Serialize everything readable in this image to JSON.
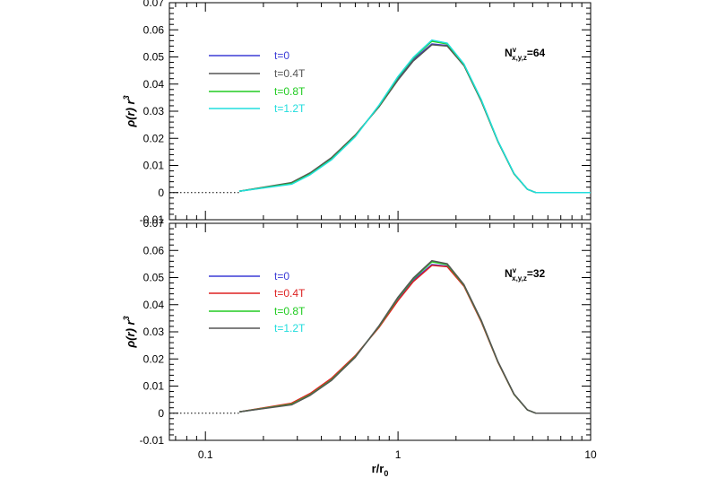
{
  "chart_data": [
    {
      "type": "line",
      "panel": "top",
      "annotation": {
        "base": "N",
        "sup": "v",
        "sub": "x,y,z",
        "value": "=64"
      },
      "ylabel": {
        "main": "ρ(r) r",
        "sup": "3"
      },
      "xscale": "log",
      "xlim": [
        0.065,
        10
      ],
      "ylim": [
        -0.01,
        0.07
      ],
      "yticks": [
        "-0.01",
        "0",
        "0.01",
        "0.02",
        "0.03",
        "0.04",
        "0.05",
        "0.06",
        "0.07"
      ],
      "zero_line": "dotted",
      "legend_position": "upper-left",
      "series": [
        {
          "name": "t=0",
          "color": "#3b3bd6",
          "x": [
            0.15,
            0.28,
            0.35,
            0.45,
            0.6,
            0.8,
            1.0,
            1.2,
            1.5,
            1.8,
            2.2,
            2.7,
            3.3,
            4.0,
            4.7,
            5.2,
            6.0,
            10.0
          ],
          "y": [
            0.0005,
            0.0035,
            0.007,
            0.0125,
            0.021,
            0.032,
            0.042,
            0.049,
            0.0548,
            0.0542,
            0.047,
            0.034,
            0.019,
            0.007,
            0.0012,
            0.0,
            0.0,
            0.0
          ]
        },
        {
          "name": "t=0.4T",
          "color": "#555555",
          "x": [
            0.15,
            0.28,
            0.35,
            0.45,
            0.6,
            0.8,
            1.0,
            1.2,
            1.5,
            1.8,
            2.2,
            2.7,
            3.3,
            4.0,
            4.7,
            5.2,
            6.0,
            10.0
          ],
          "y": [
            0.0005,
            0.0037,
            0.0073,
            0.0128,
            0.0212,
            0.0318,
            0.0415,
            0.0485,
            0.0545,
            0.054,
            0.0468,
            0.0338,
            0.0188,
            0.0069,
            0.0012,
            0.0,
            0.0,
            0.0
          ]
        },
        {
          "name": "t=0.8T",
          "color": "#22cc22",
          "x": [
            0.15,
            0.28,
            0.35,
            0.45,
            0.6,
            0.8,
            1.0,
            1.2,
            1.5,
            1.8,
            2.2,
            2.7,
            3.3,
            4.0,
            4.7,
            5.2,
            6.0,
            10.0
          ],
          "y": [
            0.0005,
            0.0033,
            0.0068,
            0.0122,
            0.0208,
            0.0322,
            0.0425,
            0.0495,
            0.0558,
            0.0548,
            0.0472,
            0.0342,
            0.019,
            0.007,
            0.0012,
            0.0,
            0.0,
            0.0
          ]
        },
        {
          "name": "t=1.2T",
          "color": "#22dddd",
          "x": [
            0.15,
            0.28,
            0.35,
            0.45,
            0.6,
            0.8,
            1.0,
            1.2,
            1.5,
            1.8,
            2.2,
            2.7,
            3.3,
            4.0,
            4.7,
            5.2,
            6.0,
            10.0
          ],
          "y": [
            0.0005,
            0.0031,
            0.0066,
            0.012,
            0.0206,
            0.0324,
            0.0428,
            0.0498,
            0.0562,
            0.0551,
            0.0474,
            0.0344,
            0.0191,
            0.0071,
            0.0012,
            0.0,
            0.0,
            0.0
          ]
        }
      ]
    },
    {
      "type": "line",
      "panel": "bottom",
      "annotation": {
        "base": "N",
        "sup": "v",
        "sub": "x,y,z",
        "value": "=32"
      },
      "ylabel": {
        "main": "ρ(r) r",
        "sup": "3"
      },
      "xlabel": {
        "main": "r/r",
        "sub": "0"
      },
      "xscale": "log",
      "xlim": [
        0.065,
        10
      ],
      "xticks": [
        "0.1",
        "1",
        "10"
      ],
      "ylim": [
        -0.01,
        0.07
      ],
      "yticks": [
        "-0.01",
        "0",
        "0.01",
        "0.02",
        "0.03",
        "0.04",
        "0.05",
        "0.06",
        "0.07"
      ],
      "zero_line": "dotted",
      "legend_position": "upper-left",
      "series": [
        {
          "name": "t=0",
          "color": "#3b3bd6",
          "x": [
            0.15,
            0.28,
            0.35,
            0.45,
            0.6,
            0.8,
            1.0,
            1.2,
            1.5,
            1.8,
            2.2,
            2.7,
            3.3,
            4.0,
            4.7,
            5.2,
            6.0,
            10.0
          ],
          "y": [
            0.0005,
            0.0035,
            0.007,
            0.0125,
            0.021,
            0.032,
            0.042,
            0.049,
            0.0548,
            0.0542,
            0.047,
            0.034,
            0.019,
            0.007,
            0.0012,
            0.0,
            0.0,
            0.0
          ]
        },
        {
          "name": "t=0.4T",
          "color": "#dd2222",
          "x": [
            0.15,
            0.28,
            0.35,
            0.45,
            0.6,
            0.8,
            1.0,
            1.2,
            1.5,
            1.8,
            2.2,
            2.7,
            3.3,
            4.0,
            4.7,
            5.2,
            6.0,
            10.0
          ],
          "y": [
            0.0005,
            0.0037,
            0.0073,
            0.0128,
            0.0212,
            0.0318,
            0.0415,
            0.0485,
            0.0545,
            0.054,
            0.0468,
            0.0338,
            0.0188,
            0.0069,
            0.0012,
            0.0,
            0.0,
            0.0
          ]
        },
        {
          "name": "t=0.8T",
          "color": "#22cc22",
          "x": [
            0.15,
            0.28,
            0.35,
            0.45,
            0.6,
            0.8,
            1.0,
            1.2,
            1.5,
            1.8,
            2.2,
            2.7,
            3.3,
            4.0,
            4.7,
            5.2,
            6.0,
            10.0
          ],
          "y": [
            0.0005,
            0.0033,
            0.0068,
            0.0122,
            0.0208,
            0.0322,
            0.0425,
            0.0495,
            0.0558,
            0.0548,
            0.0472,
            0.0342,
            0.019,
            0.007,
            0.0012,
            0.0,
            0.0,
            0.0
          ]
        },
        {
          "name": "t=1.2T",
          "color": "#555555",
          "label_color": "#22dddd",
          "x": [
            0.15,
            0.28,
            0.35,
            0.45,
            0.6,
            0.8,
            1.0,
            1.2,
            1.5,
            1.8,
            2.2,
            2.7,
            3.3,
            4.0,
            4.7,
            5.2,
            6.0,
            10.0
          ],
          "y": [
            0.0005,
            0.0031,
            0.0066,
            0.012,
            0.0206,
            0.0324,
            0.0428,
            0.0498,
            0.0562,
            0.0551,
            0.0474,
            0.0344,
            0.0191,
            0.0071,
            0.0012,
            0.0,
            0.0,
            0.0
          ]
        }
      ]
    }
  ]
}
